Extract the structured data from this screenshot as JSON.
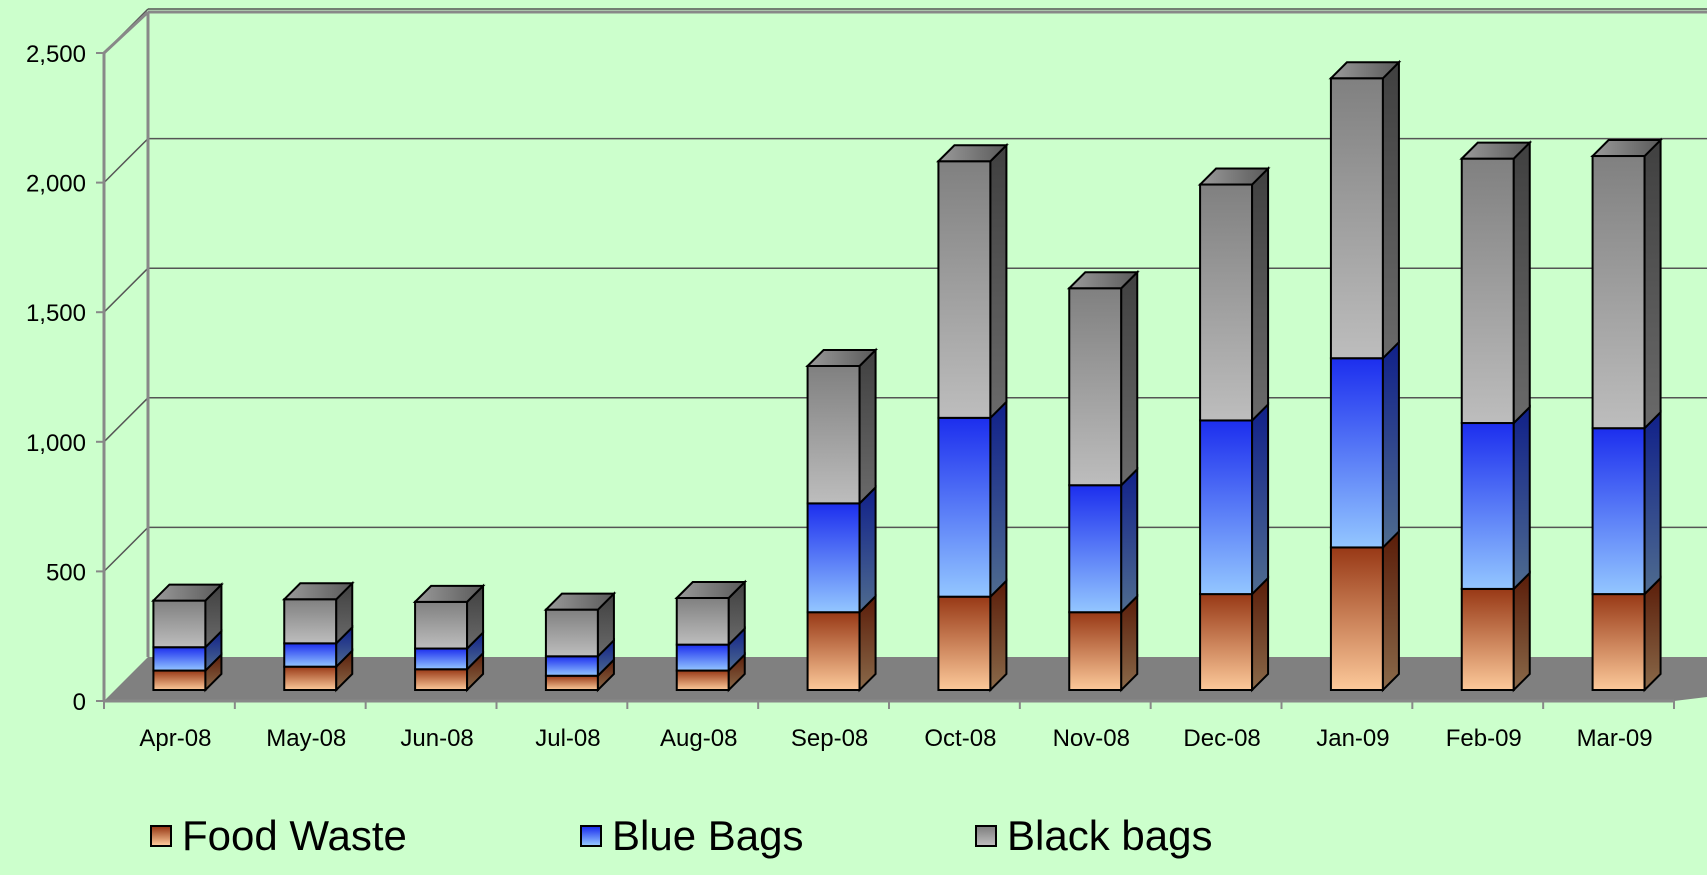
{
  "chart_data": {
    "type": "bar",
    "stacked": true,
    "three_d": true,
    "categories": [
      "Apr-08",
      "May-08",
      "Jun-08",
      "Jul-08",
      "Aug-08",
      "Sep-08",
      "Oct-08",
      "Nov-08",
      "Dec-08",
      "Jan-09",
      "Feb-09",
      "Mar-09"
    ],
    "series": [
      {
        "name": "Food Waste",
        "values": [
          75,
          90,
          80,
          55,
          75,
          300,
          360,
          300,
          370,
          550,
          390,
          370
        ]
      },
      {
        "name": "Blue Bags",
        "values": [
          90,
          90,
          80,
          75,
          100,
          420,
          690,
          490,
          670,
          730,
          640,
          640
        ]
      },
      {
        "name": "Black bags",
        "values": [
          180,
          170,
          180,
          180,
          180,
          530,
          990,
          760,
          910,
          1080,
          1020,
          1050
        ]
      }
    ],
    "yticks": [
      "0",
      "500",
      "1,000",
      "1,500",
      "2,000",
      "2,500"
    ],
    "ylim": [
      0,
      2500
    ],
    "title": "",
    "xlabel": "",
    "ylabel": "",
    "grid": true,
    "legend_position": "bottom",
    "colors": {
      "background": "#ccffcc",
      "food_light": "#fcc99a",
      "food_dark": "#983916",
      "blue_light": "#93c6ff",
      "blue_dark": "#1c2eee",
      "black_light": "#bdbdbd",
      "black_dark": "#808080",
      "floor": "#808080"
    }
  }
}
